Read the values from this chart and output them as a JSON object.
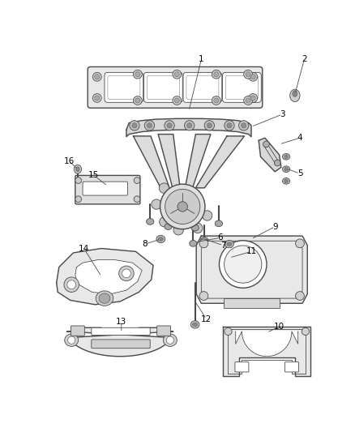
{
  "bg_color": "#ffffff",
  "line_color": "#4a4a4a",
  "label_color": "#000000",
  "figsize": [
    4.38,
    5.33
  ],
  "dpi": 100,
  "lw_main": 1.0,
  "lw_thin": 0.6,
  "lw_thick": 1.4
}
